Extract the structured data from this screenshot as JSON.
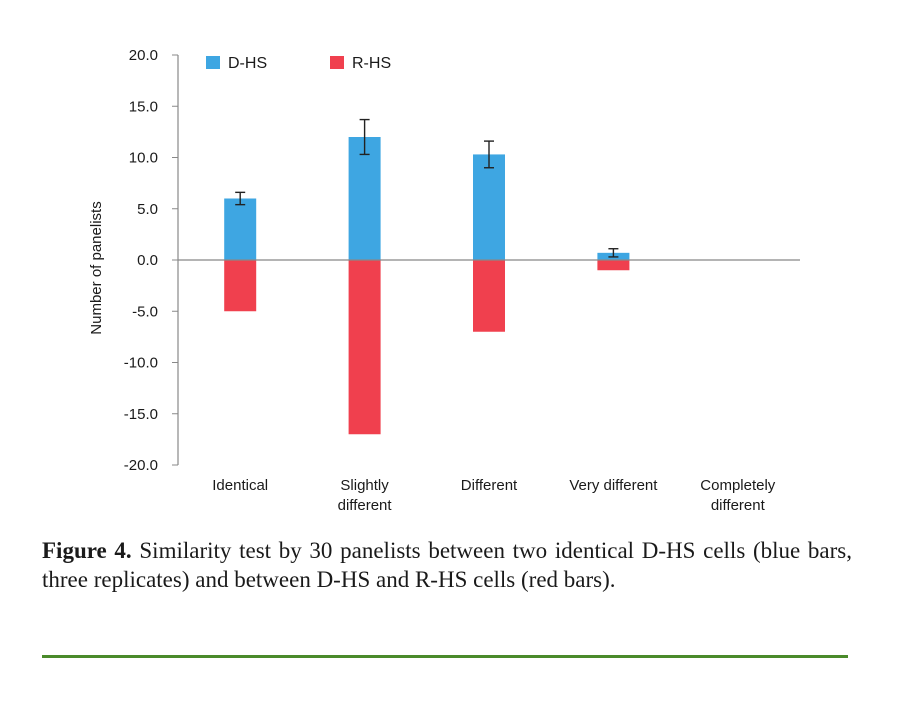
{
  "chart_data": {
    "type": "bar",
    "categories": [
      "Identical",
      "Slightly different",
      "Different",
      "Very different",
      "Completely different"
    ],
    "category_lines": [
      [
        "Identical"
      ],
      [
        "Slightly",
        "different"
      ],
      [
        "Different"
      ],
      [
        "Very different"
      ],
      [
        "Completely",
        "different"
      ]
    ],
    "series": [
      {
        "name": "D-HS",
        "color": "#3ea6e2",
        "values": [
          6.0,
          12.0,
          10.3,
          0.7,
          0
        ],
        "error": [
          0.6,
          1.7,
          1.3,
          0.4,
          0
        ]
      },
      {
        "name": "R-HS",
        "color": "#f0404e",
        "values": [
          -5.0,
          -17.0,
          -7.0,
          -1.0,
          0
        ]
      }
    ],
    "ylabel": "Number of panelists",
    "ylim": [
      -20,
      20
    ],
    "yticks": [
      "20.0",
      "15.0",
      "10.0",
      "5.0",
      "0.0",
      "-5.0",
      "-10.0",
      "-15.0",
      "-20.0"
    ],
    "legend_position": "top-left",
    "grid": false
  },
  "caption": {
    "label": "Figure 4.",
    "text": " Similarity test by 30 panelists between two identical D-HS cells (blue bars, three replicates) and between D-HS and R-HS cells (red bars)."
  }
}
